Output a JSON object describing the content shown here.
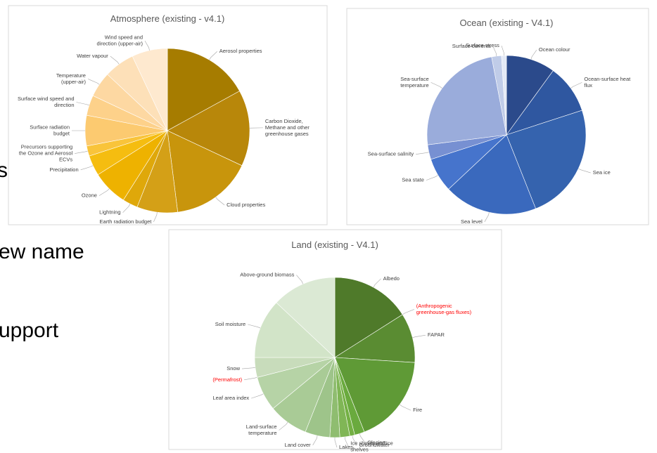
{
  "slide_text": [
    "s",
    "ew name",
    "upport"
  ],
  "chart_data": [
    {
      "type": "pie",
      "title": "Atmosphere (existing - v4.1)",
      "categories": [
        "Aerosol properties",
        "Carbon Dioxide, Methane and other greenhouse gases",
        "Cloud properties",
        "Earth radiation budget",
        "Lightning",
        "Ozone",
        "Precipitation",
        "Precursors supporting the Ozone and Aerosol ECVs",
        "Surface radiation budget",
        "Surface wind speed and direction",
        "Temperature (upper-air)",
        "Water vapour",
        "Wind speed and direction (upper-air)"
      ],
      "values": [
        17,
        15,
        16,
        8,
        3,
        7,
        4,
        2,
        6,
        4,
        5,
        6,
        7
      ],
      "colors": [
        "#a67c00",
        "#b8870a",
        "#c8950c",
        "#d4a017",
        "#dfa80a",
        "#eeb200",
        "#f5bd10",
        "#f9c43a",
        "#fcca70",
        "#fdd18a",
        "#fdd8a2",
        "#fde0b8",
        "#fee9cf"
      ],
      "label_colors": [
        "#404040",
        "#404040",
        "#404040",
        "#404040",
        "#404040",
        "#404040",
        "#404040",
        "#404040",
        "#404040",
        "#404040",
        "#404040",
        "#404040",
        "#404040"
      ]
    },
    {
      "type": "pie",
      "title": "Ocean (existing - V4.1)",
      "categories": [
        "Ocean colour",
        "Ocean-surface heat flux",
        "Sea ice",
        "Sea level",
        "Sea state",
        "Sea-surface salinity",
        "Sea-surface temperature",
        "Surface currents",
        "Surface stress"
      ],
      "values": [
        10,
        10,
        24,
        19,
        7,
        3,
        24,
        2,
        1
      ],
      "colors": [
        "#2b4a8b",
        "#2f57a0",
        "#3563ae",
        "#3a69bd",
        "#4674cc",
        "#7790d2",
        "#9aacdb",
        "#c0cce8",
        "#e3e9f5"
      ],
      "label_colors": [
        "#404040",
        "#404040",
        "#404040",
        "#404040",
        "#404040",
        "#404040",
        "#404040",
        "#404040",
        "#404040"
      ]
    },
    {
      "type": "pie",
      "title": "Land (existing - V4.1)",
      "categories": [
        "Albedo",
        "(Anthropogenic greenhouse-gas fluxes)",
        "FAPAR",
        "Fire",
        "Glaciers",
        "Groundwater",
        "Ice sheets and ice shelves",
        "Lakes",
        "Land cover",
        "Land-surface temperature",
        "Leaf area index",
        "(Permafrost)",
        "Snow",
        "Soil moisture",
        "Above-ground biomass"
      ],
      "values": [
        16,
        0,
        10,
        18,
        2,
        1,
        2,
        2,
        5,
        8,
        7,
        0,
        4,
        12,
        13
      ],
      "colors": [
        "#4f7a2a",
        "#548230",
        "#5a8c32",
        "#5f9a36",
        "#6aaa3e",
        "#74b044",
        "#80b656",
        "#8fbd70",
        "#9ec48a",
        "#a9cb96",
        "#b6d3a6",
        "#bfd8b2",
        "#c8dcbb",
        "#d2e4c8",
        "#dbe9d4"
      ],
      "label_colors": [
        "#404040",
        "#ff0000",
        "#404040",
        "#404040",
        "#404040",
        "#404040",
        "#404040",
        "#404040",
        "#404040",
        "#404040",
        "#404040",
        "#ff0000",
        "#404040",
        "#404040",
        "#404040"
      ]
    }
  ]
}
